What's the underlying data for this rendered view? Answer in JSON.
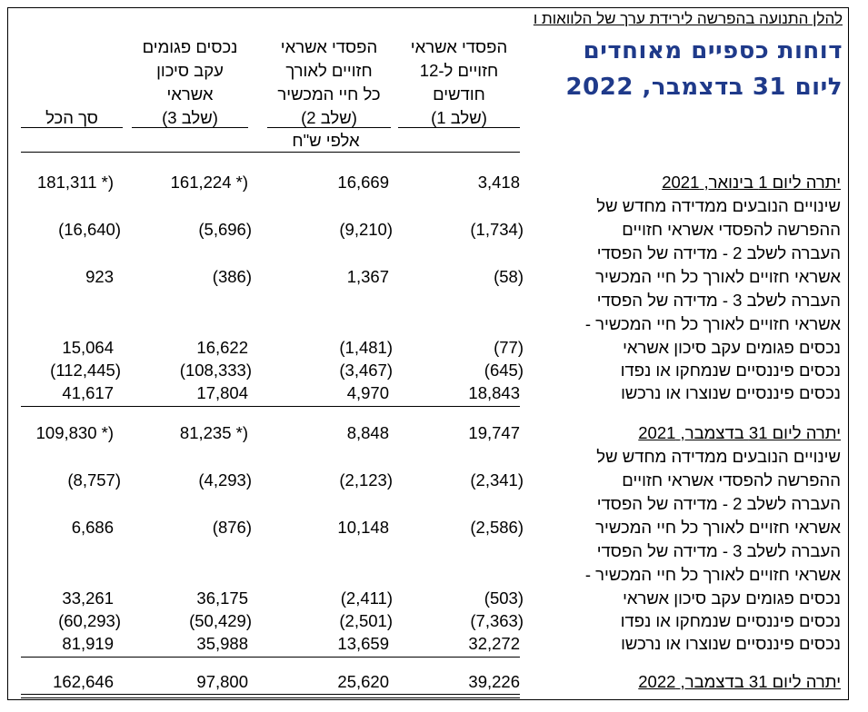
{
  "note": "להלן התנועה בהפרשה לירידת ערך של הלוואות ו",
  "title": {
    "line1": "דוחות כספיים מאוחדים",
    "line2": "ליום 31 בדצמבר, 2022"
  },
  "columns": [
    {
      "lines": [
        "הפסדי אשראי",
        "חזויים ל-12",
        "חודשים",
        "(שלב 1)"
      ]
    },
    {
      "lines": [
        "הפסדי אשראי",
        "חזויים לאורך",
        "כל חיי המכשיר",
        "(שלב 2)"
      ]
    },
    {
      "lines": [
        "נכסים פגומים",
        "עקב סיכון",
        "אשראי",
        "(שלב 3)"
      ]
    },
    {
      "lines": [
        "סך הכל"
      ]
    }
  ],
  "unit": "אלפי ש\"ח",
  "sections": [
    {
      "opening_label": "יתרה ליום 1 בינואר, 2021",
      "opening": [
        "3,418",
        "16,669",
        "161,224 *)",
        "181,311 *)"
      ],
      "rows": [
        {
          "label": [
            "שינויים הנובעים ממדידה מחדש של",
            "ההפרשה להפסדי אשראי חזויים"
          ],
          "values": [
            "(1,734)",
            "(9,210)",
            "(5,696)",
            "(16,640)"
          ]
        },
        {
          "label": [
            "העברה לשלב 2 - מדידה של הפסדי",
            "אשראי חזויים לאורך כל חיי המכשיר"
          ],
          "values": [
            "(58)",
            "1,367",
            "(386)",
            "923"
          ]
        },
        {
          "label": [
            "העברה לשלב 3 - מדידה של הפסדי",
            "אשראי חזויים לאורך כל חיי המכשיר -",
            "נכסים פגומים עקב סיכון אשראי"
          ],
          "values": [
            "(77)",
            "(1,481)",
            "16,622",
            "15,064"
          ]
        },
        {
          "label": [
            "נכסים פיננסיים שנמחקו או נפדו"
          ],
          "values": [
            "(645)",
            "(3,467)",
            "(108,333)",
            "(112,445)"
          ]
        },
        {
          "label": [
            "נכסים פיננסיים שנוצרו או נרכשו"
          ],
          "values": [
            "18,843",
            "4,970",
            "17,804",
            "41,617"
          ]
        }
      ]
    },
    {
      "opening_label": "יתרה ליום 31 בדצמבר, 2021",
      "opening": [
        "19,747",
        "8,848",
        "81,235 *)",
        "109,830 *)"
      ],
      "rows": [
        {
          "label": [
            "שינויים הנובעים ממדידה מחדש של",
            "ההפרשה להפסדי אשראי חזויים"
          ],
          "values": [
            "(2,341)",
            "(2,123)",
            "(4,293)",
            "(8,757)"
          ]
        },
        {
          "label": [
            "העברה לשלב 2 - מדידה של הפסדי",
            "אשראי חזויים לאורך כל חיי המכשיר"
          ],
          "values": [
            "(2,586)",
            "10,148",
            "(876)",
            "6,686"
          ]
        },
        {
          "label": [
            "העברה לשלב 3 - מדידה של הפסדי",
            "אשראי חזויים לאורך כל חיי המכשיר -",
            "נכסים פגומים עקב סיכון אשראי"
          ],
          "values": [
            "(503)",
            "(2,411)",
            "36,175",
            "33,261"
          ]
        },
        {
          "label": [
            "נכסים פיננסיים שנמחקו או נפדו"
          ],
          "values": [
            "(7,363)",
            "(2,501)",
            "(50,429)",
            "(60,293)"
          ]
        },
        {
          "label": [
            "נכסים פיננסיים שנוצרו או נרכשו"
          ],
          "values": [
            "32,272",
            "13,659",
            "35,988",
            "81,919"
          ]
        }
      ]
    }
  ],
  "closing": {
    "label": "יתרה ליום 31 בדצמבר, 2022",
    "values": [
      "39,226",
      "25,620",
      "97,800",
      "162,646"
    ]
  }
}
